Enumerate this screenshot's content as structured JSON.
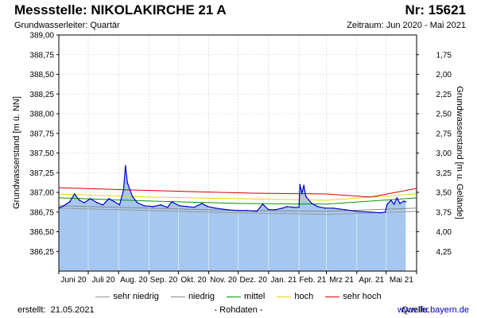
{
  "header": {
    "title": "Messstelle: NIKOLAKIRCHE 21 A",
    "number": "Nr: 15621",
    "aquifer": "Grundwasserleiter: Quartär",
    "period": "Zeitraum: Jun 2020 - Mai 2021"
  },
  "footer": {
    "created_label": "erstellt:",
    "created_date": "21.05.2021",
    "status": "- Rohdaten -",
    "source_label": "Quelle:",
    "source_link": "www.lfu.bayern.de"
  },
  "chart_data": {
    "type": "area",
    "ylabel_left": "Grundwasserstand [m ü. NN]",
    "ylabel_right": "Grundwasserstand [m u. Gelände]",
    "ylim": [
      386.0,
      389.0
    ],
    "ylim_right": [
      4.5,
      1.5
    ],
    "yticks_left": [
      "389,00",
      "388,75",
      "388,50",
      "388,25",
      "388,00",
      "387,75",
      "387,50",
      "387,25",
      "387,00",
      "386,75",
      "386,50",
      "386,25"
    ],
    "yticks_left_values": [
      389.0,
      388.75,
      388.5,
      388.25,
      388.0,
      387.75,
      387.5,
      387.25,
      387.0,
      386.75,
      386.5,
      386.25
    ],
    "yticks_right": [
      "1,75",
      "2,00",
      "2,25",
      "2,50",
      "2,75",
      "3,00",
      "3,25",
      "3,50",
      "3,75",
      "4,00",
      "4,25"
    ],
    "yticks_right_values": [
      1.75,
      2.0,
      2.25,
      2.5,
      2.75,
      3.0,
      3.25,
      3.5,
      3.75,
      4.0,
      4.25
    ],
    "xticks": [
      "Juni 20",
      "Juli 20",
      "Aug. 20",
      "Sep. 20",
      "Okt. 20",
      "Nov. 20",
      "Dez. 20",
      "Jan. 21",
      "Feb. 21",
      "Mrz 21",
      "Apr. 21",
      "Mai 21"
    ],
    "xdomain": [
      "2020-06-01",
      "2021-06-01"
    ],
    "grid": true,
    "series": [
      {
        "name": "Rohdaten",
        "color": "#0000cc",
        "fill": "#a6c8f0",
        "x": [
          "2020-06-01",
          "2020-06-06",
          "2020-06-12",
          "2020-06-17",
          "2020-06-22",
          "2020-06-27",
          "2020-07-03",
          "2020-07-10",
          "2020-07-16",
          "2020-07-22",
          "2020-07-28",
          "2020-08-02",
          "2020-08-06",
          "2020-08-08",
          "2020-08-10",
          "2020-08-15",
          "2020-08-20",
          "2020-08-27",
          "2020-09-05",
          "2020-09-13",
          "2020-09-20",
          "2020-09-24",
          "2020-10-02",
          "2020-10-10",
          "2020-10-17",
          "2020-10-25",
          "2020-10-31",
          "2020-11-08",
          "2020-11-20",
          "2020-12-01",
          "2020-12-10",
          "2020-12-20",
          "2020-12-26",
          "2021-01-01",
          "2021-01-08",
          "2021-01-15",
          "2021-01-20",
          "2021-01-27",
          "2021-02-01",
          "2021-02-02",
          "2021-02-04",
          "2021-02-06",
          "2021-02-08",
          "2021-02-14",
          "2021-02-20",
          "2021-02-28",
          "2021-03-08",
          "2021-03-20",
          "2021-04-01",
          "2021-04-15",
          "2021-04-25",
          "2021-04-30",
          "2021-05-02",
          "2021-05-06",
          "2021-05-09",
          "2021-05-12",
          "2021-05-15",
          "2021-05-19",
          "2021-05-21"
        ],
        "y": [
          386.8,
          386.83,
          386.88,
          386.98,
          386.9,
          386.87,
          386.92,
          386.87,
          386.84,
          386.92,
          386.88,
          386.84,
          387.03,
          387.34,
          387.12,
          386.95,
          386.87,
          386.83,
          386.82,
          386.84,
          386.81,
          386.88,
          386.83,
          386.82,
          386.81,
          386.86,
          386.82,
          386.8,
          386.78,
          386.77,
          386.77,
          386.76,
          386.85,
          386.78,
          386.78,
          386.8,
          386.82,
          386.81,
          386.81,
          387.1,
          386.99,
          387.09,
          386.95,
          386.86,
          386.82,
          386.8,
          386.8,
          386.78,
          386.76,
          386.75,
          386.74,
          386.75,
          386.85,
          386.9,
          386.85,
          386.93,
          386.86,
          386.89,
          386.88
        ]
      },
      {
        "name": "sehr niedrig",
        "color": "#999999",
        "x": [
          "2020-06-01",
          "2020-09-01",
          "2020-12-01",
          "2021-03-01",
          "2021-06-01"
        ],
        "y": [
          386.8,
          386.77,
          386.74,
          386.72,
          386.76
        ]
      },
      {
        "name": "niedrig",
        "color": "#888888",
        "x": [
          "2020-06-01",
          "2020-09-01",
          "2020-12-01",
          "2021-03-01",
          "2021-06-01"
        ],
        "y": [
          386.83,
          386.8,
          386.77,
          386.76,
          386.8
        ]
      },
      {
        "name": "mittel",
        "color": "#009900",
        "x": [
          "2020-06-01",
          "2020-09-01",
          "2020-12-01",
          "2021-03-01",
          "2021-06-01"
        ],
        "y": [
          386.93,
          386.89,
          386.86,
          386.85,
          386.93
        ]
      },
      {
        "name": "hoch",
        "color": "#e6d800",
        "x": [
          "2020-06-01",
          "2020-09-01",
          "2020-12-01",
          "2021-03-01",
          "2021-06-01"
        ],
        "y": [
          386.98,
          386.94,
          386.92,
          386.9,
          386.98
        ]
      },
      {
        "name": "sehr hoch",
        "color": "#dd0000",
        "x": [
          "2020-06-01",
          "2020-08-15",
          "2020-10-15",
          "2020-12-15",
          "2021-03-01",
          "2021-04-15",
          "2021-06-01"
        ],
        "y": [
          387.06,
          387.03,
          387.01,
          386.99,
          386.98,
          386.94,
          387.05
        ]
      }
    ],
    "legend": [
      "sehr niedrig",
      "niedrig",
      "mittel",
      "hoch",
      "sehr hoch"
    ]
  }
}
